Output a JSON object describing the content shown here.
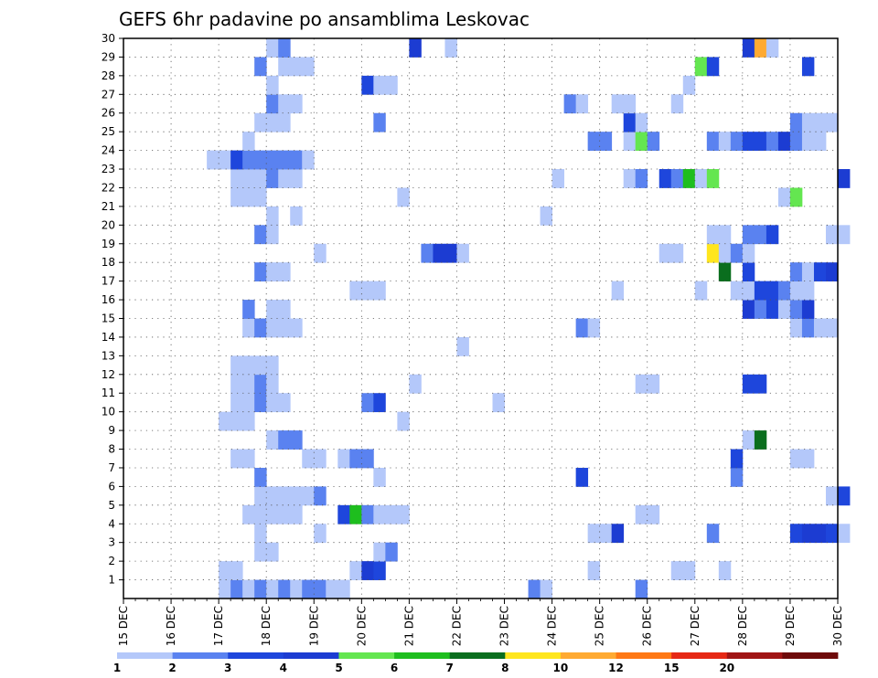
{
  "chart_data": {
    "type": "heatmap",
    "title": "GEFS 6hr padavine po ansamblima Leskovac",
    "x_tick_labels": [
      "15 DEC",
      "16 DEC",
      "17 DEC",
      "18 DEC",
      "19 DEC",
      "20 DEC",
      "21 DEC",
      "22 DEC",
      "23 DEC",
      "24 DEC",
      "25 DEC",
      "26 DEC",
      "27 DEC",
      "28 DEC",
      "29 DEC",
      "30 DEC"
    ],
    "x_range_days": [
      15,
      30
    ],
    "steps_per_day": 4,
    "y_tick_labels": [
      "1",
      "2",
      "3",
      "4",
      "5",
      "6",
      "7",
      "8",
      "9",
      "10",
      "11",
      "12",
      "13",
      "14",
      "15",
      "16",
      "17",
      "18",
      "19",
      "20",
      "21",
      "22",
      "23",
      "24",
      "25",
      "26",
      "27",
      "28",
      "29",
      "30"
    ],
    "y_range": [
      0,
      30
    ],
    "grid": "dotted",
    "colorbar": {
      "labels": [
        "1",
        "2",
        "3",
        "4",
        "5",
        "6",
        "7",
        "8",
        "10",
        "12",
        "15",
        "20"
      ],
      "colors": [
        "#b4c8fa",
        "#5a82f0",
        "#1e46dc",
        "#1c3cd2",
        "#64e650",
        "#1ebe1e",
        "#0a6e1e",
        "#ffe61e",
        "#ffaa32",
        "#ff7814",
        "#e62814",
        "#a01414",
        "#6e0a0a"
      ]
    },
    "cells": [
      [
        1,
        17.0,
        1
      ],
      [
        1,
        17.25,
        2
      ],
      [
        1,
        17.5,
        1
      ],
      [
        1,
        17.75,
        2
      ],
      [
        1,
        18.0,
        1
      ],
      [
        1,
        18.25,
        2
      ],
      [
        1,
        18.5,
        1
      ],
      [
        1,
        18.75,
        2
      ],
      [
        1,
        19.0,
        2
      ],
      [
        1,
        19.25,
        1
      ],
      [
        1,
        19.5,
        1
      ],
      [
        1,
        23.5,
        2
      ],
      [
        1,
        23.75,
        1
      ],
      [
        1,
        25.75,
        2
      ],
      [
        2,
        17.0,
        1
      ],
      [
        2,
        17.25,
        1
      ],
      [
        2,
        19.75,
        1
      ],
      [
        2,
        20.0,
        4
      ],
      [
        2,
        20.25,
        3
      ],
      [
        2,
        24.75,
        1
      ],
      [
        2,
        26.5,
        1
      ],
      [
        2,
        26.75,
        1
      ],
      [
        2,
        27.5,
        1
      ],
      [
        3,
        17.75,
        1
      ],
      [
        3,
        18.0,
        1
      ],
      [
        3,
        20.25,
        1
      ],
      [
        3,
        20.5,
        2
      ],
      [
        4,
        17.75,
        1
      ],
      [
        4,
        19.0,
        1
      ],
      [
        4,
        24.75,
        1
      ],
      [
        4,
        25.0,
        1
      ],
      [
        4,
        25.25,
        4
      ],
      [
        4,
        27.25,
        2
      ],
      [
        4,
        29.0,
        3
      ],
      [
        4,
        29.25,
        4
      ],
      [
        4,
        29.5,
        4
      ],
      [
        4,
        29.75,
        3
      ],
      [
        4,
        30.0,
        1
      ],
      [
        5,
        17.5,
        1
      ],
      [
        5,
        17.75,
        1
      ],
      [
        5,
        18.0,
        1
      ],
      [
        5,
        18.25,
        1
      ],
      [
        5,
        18.5,
        1
      ],
      [
        5,
        19.5,
        3
      ],
      [
        5,
        19.75,
        6
      ],
      [
        5,
        20.0,
        2
      ],
      [
        5,
        20.25,
        1
      ],
      [
        5,
        20.5,
        1
      ],
      [
        5,
        20.75,
        1
      ],
      [
        5,
        25.75,
        1
      ],
      [
        5,
        26.0,
        1
      ],
      [
        6,
        17.75,
        1
      ],
      [
        6,
        18.0,
        1
      ],
      [
        6,
        18.25,
        1
      ],
      [
        6,
        18.5,
        1
      ],
      [
        6,
        18.75,
        1
      ],
      [
        6,
        19.0,
        2
      ],
      [
        6,
        29.75,
        1
      ],
      [
        6,
        30.0,
        3
      ],
      [
        7,
        17.75,
        2
      ],
      [
        7,
        20.25,
        1
      ],
      [
        7,
        24.5,
        3
      ],
      [
        7,
        27.75,
        2
      ],
      [
        8,
        17.25,
        1
      ],
      [
        8,
        17.5,
        1
      ],
      [
        8,
        18.75,
        1
      ],
      [
        8,
        19.0,
        1
      ],
      [
        8,
        19.5,
        1
      ],
      [
        8,
        19.75,
        2
      ],
      [
        8,
        20.0,
        2
      ],
      [
        8,
        27.75,
        3
      ],
      [
        8,
        29.0,
        1
      ],
      [
        8,
        29.25,
        1
      ],
      [
        9,
        18.0,
        1
      ],
      [
        9,
        18.25,
        2
      ],
      [
        9,
        18.5,
        2
      ],
      [
        9,
        28.0,
        1
      ],
      [
        9,
        28.25,
        7
      ],
      [
        10,
        17.0,
        1
      ],
      [
        10,
        17.25,
        1
      ],
      [
        10,
        17.5,
        1
      ],
      [
        10,
        20.75,
        1
      ],
      [
        11,
        17.25,
        1
      ],
      [
        11,
        17.5,
        1
      ],
      [
        11,
        17.75,
        2
      ],
      [
        11,
        18.0,
        1
      ],
      [
        11,
        18.25,
        1
      ],
      [
        11,
        20.0,
        2
      ],
      [
        11,
        20.25,
        3
      ],
      [
        11,
        22.75,
        1
      ],
      [
        12,
        17.25,
        1
      ],
      [
        12,
        17.5,
        1
      ],
      [
        12,
        17.75,
        2
      ],
      [
        12,
        18.0,
        1
      ],
      [
        12,
        21.0,
        1
      ],
      [
        12,
        25.75,
        1
      ],
      [
        12,
        26.0,
        1
      ],
      [
        12,
        28.0,
        3
      ],
      [
        12,
        28.25,
        3
      ],
      [
        13,
        17.25,
        1
      ],
      [
        13,
        17.5,
        1
      ],
      [
        13,
        17.75,
        1
      ],
      [
        13,
        18.0,
        1
      ],
      [
        14,
        22.0,
        1
      ],
      [
        15,
        17.5,
        1
      ],
      [
        15,
        17.75,
        2
      ],
      [
        15,
        18.0,
        1
      ],
      [
        15,
        18.25,
        1
      ],
      [
        15,
        18.5,
        1
      ],
      [
        15,
        24.5,
        2
      ],
      [
        15,
        24.75,
        1
      ],
      [
        15,
        29.0,
        1
      ],
      [
        15,
        29.25,
        2
      ],
      [
        15,
        29.5,
        1
      ],
      [
        15,
        29.75,
        1
      ],
      [
        16,
        17.5,
        2
      ],
      [
        16,
        18.0,
        1
      ],
      [
        16,
        18.25,
        1
      ],
      [
        16,
        28.0,
        4
      ],
      [
        16,
        28.25,
        2
      ],
      [
        16,
        28.5,
        3
      ],
      [
        16,
        28.75,
        1
      ],
      [
        16,
        29.0,
        2
      ],
      [
        16,
        29.25,
        4
      ],
      [
        17,
        19.75,
        1
      ],
      [
        17,
        20.0,
        1
      ],
      [
        17,
        20.25,
        1
      ],
      [
        17,
        25.25,
        1
      ],
      [
        17,
        27.0,
        1
      ],
      [
        17,
        27.75,
        1
      ],
      [
        17,
        28.0,
        1
      ],
      [
        17,
        28.25,
        3
      ],
      [
        17,
        28.5,
        3
      ],
      [
        17,
        28.75,
        2
      ],
      [
        17,
        29.0,
        1
      ],
      [
        17,
        29.25,
        1
      ],
      [
        18,
        17.75,
        2
      ],
      [
        18,
        18.0,
        1
      ],
      [
        18,
        18.25,
        1
      ],
      [
        18,
        27.5,
        7
      ],
      [
        18,
        28.0,
        3
      ],
      [
        18,
        29.0,
        2
      ],
      [
        18,
        29.25,
        1
      ],
      [
        18,
        29.5,
        3
      ],
      [
        18,
        29.75,
        4
      ],
      [
        19,
        19.0,
        1
      ],
      [
        19,
        21.25,
        2
      ],
      [
        19,
        21.5,
        4
      ],
      [
        19,
        21.75,
        4
      ],
      [
        19,
        22.0,
        1
      ],
      [
        19,
        26.25,
        1
      ],
      [
        19,
        26.5,
        1
      ],
      [
        19,
        27.25,
        8
      ],
      [
        19,
        27.5,
        1
      ],
      [
        19,
        27.75,
        2
      ],
      [
        19,
        28.0,
        1
      ],
      [
        20,
        17.75,
        2
      ],
      [
        20,
        18.0,
        1
      ],
      [
        20,
        27.25,
        1
      ],
      [
        20,
        27.5,
        1
      ],
      [
        20,
        28.0,
        2
      ],
      [
        20,
        28.25,
        2
      ],
      [
        20,
        28.5,
        3
      ],
      [
        20,
        29.75,
        1
      ],
      [
        20,
        30.0,
        1
      ],
      [
        21,
        18.0,
        1
      ],
      [
        21,
        18.5,
        1
      ],
      [
        21,
        23.75,
        1
      ],
      [
        22,
        17.25,
        1
      ],
      [
        22,
        17.5,
        1
      ],
      [
        22,
        17.75,
        1
      ],
      [
        22,
        20.75,
        1
      ],
      [
        22,
        28.75,
        1
      ],
      [
        22,
        29.0,
        5
      ],
      [
        23,
        17.25,
        1
      ],
      [
        23,
        17.5,
        1
      ],
      [
        23,
        17.75,
        1
      ],
      [
        23,
        18.0,
        2
      ],
      [
        23,
        18.25,
        1
      ],
      [
        23,
        18.5,
        1
      ],
      [
        23,
        24.0,
        1
      ],
      [
        23,
        25.5,
        1
      ],
      [
        23,
        25.75,
        2
      ],
      [
        23,
        26.25,
        3
      ],
      [
        23,
        26.5,
        2
      ],
      [
        23,
        26.75,
        6
      ],
      [
        23,
        27.0,
        1
      ],
      [
        23,
        27.25,
        5
      ],
      [
        23,
        30.0,
        4
      ],
      [
        24,
        16.75,
        1
      ],
      [
        24,
        17.0,
        1
      ],
      [
        24,
        17.25,
        3
      ],
      [
        24,
        17.5,
        2
      ],
      [
        24,
        17.75,
        2
      ],
      [
        24,
        18.0,
        2
      ],
      [
        24,
        18.25,
        2
      ],
      [
        24,
        18.5,
        2
      ],
      [
        24,
        18.75,
        1
      ],
      [
        25,
        17.5,
        1
      ],
      [
        25,
        24.75,
        2
      ],
      [
        25,
        25.0,
        2
      ],
      [
        25,
        25.5,
        1
      ],
      [
        25,
        25.75,
        5
      ],
      [
        25,
        26.0,
        2
      ],
      [
        25,
        27.25,
        2
      ],
      [
        25,
        27.5,
        1
      ],
      [
        25,
        27.75,
        2
      ],
      [
        25,
        28.0,
        3
      ],
      [
        25,
        28.25,
        3
      ],
      [
        25,
        28.5,
        2
      ],
      [
        25,
        28.75,
        4
      ],
      [
        25,
        29.0,
        2
      ],
      [
        25,
        29.25,
        1
      ],
      [
        25,
        29.5,
        1
      ],
      [
        26,
        17.75,
        1
      ],
      [
        26,
        18.0,
        1
      ],
      [
        26,
        18.25,
        1
      ],
      [
        26,
        20.25,
        2
      ],
      [
        26,
        25.5,
        3
      ],
      [
        26,
        25.75,
        1
      ],
      [
        26,
        29.0,
        2
      ],
      [
        26,
        29.25,
        1
      ],
      [
        26,
        29.5,
        1
      ],
      [
        26,
        29.75,
        1
      ],
      [
        27,
        18.0,
        2
      ],
      [
        27,
        18.25,
        1
      ],
      [
        27,
        18.5,
        1
      ],
      [
        27,
        24.25,
        2
      ],
      [
        27,
        24.5,
        1
      ],
      [
        27,
        25.25,
        1
      ],
      [
        27,
        25.5,
        1
      ],
      [
        27,
        26.5,
        1
      ],
      [
        28,
        18.0,
        1
      ],
      [
        28,
        20.0,
        3
      ],
      [
        28,
        20.25,
        1
      ],
      [
        28,
        20.5,
        1
      ],
      [
        28,
        26.75,
        1
      ],
      [
        29,
        17.75,
        2
      ],
      [
        29,
        18.25,
        1
      ],
      [
        29,
        18.5,
        1
      ],
      [
        29,
        18.75,
        1
      ],
      [
        29,
        27.0,
        5
      ],
      [
        29,
        27.25,
        3
      ],
      [
        29,
        29.25,
        3
      ],
      [
        30,
        18.0,
        1
      ],
      [
        30,
        18.25,
        2
      ],
      [
        30,
        21.0,
        4
      ],
      [
        30,
        21.75,
        1
      ],
      [
        30,
        28.0,
        4
      ],
      [
        30,
        28.25,
        9
      ],
      [
        30,
        28.5,
        1
      ]
    ]
  }
}
